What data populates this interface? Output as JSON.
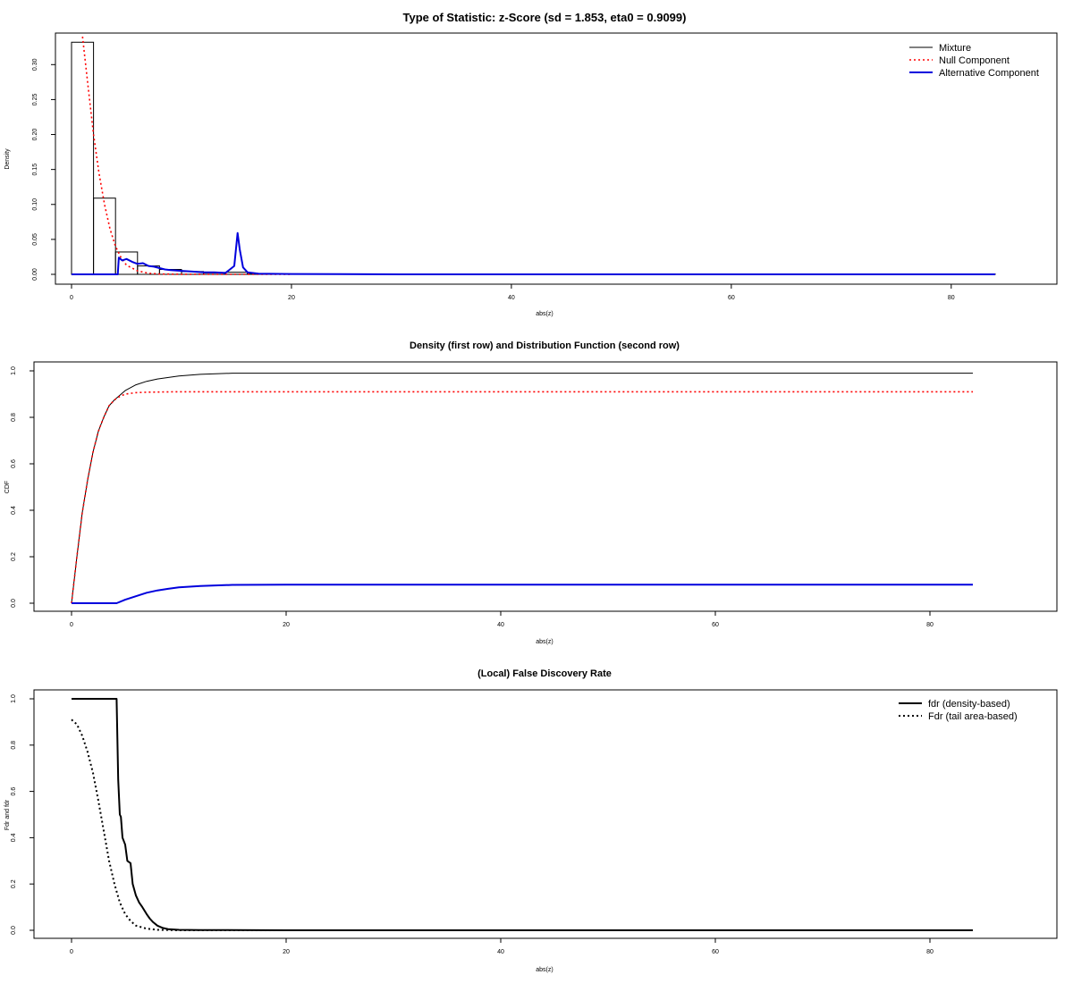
{
  "chart_data": [
    {
      "type": "line",
      "title": "Type of Statistic: z-Score  (sd = 1.853, eta0 = 0.9099)",
      "xlabel": "abs(z)",
      "ylabel": "Density",
      "xlim": [
        0,
        86
      ],
      "ylim": [
        0,
        0.34
      ],
      "xticks": [
        "0",
        "20",
        "40",
        "60",
        "80"
      ],
      "yticks": [
        "0.00",
        "0.05",
        "0.10",
        "0.15",
        "0.20",
        "0.25",
        "0.30"
      ],
      "histogram": {
        "breaks": [
          0,
          2,
          4,
          6,
          8,
          10,
          12,
          14,
          16,
          84
        ],
        "density": [
          0.332,
          0.109,
          0.032,
          0.012,
          0.007,
          0.004,
          0.002,
          0.003,
          0.0005
        ]
      },
      "series": [
        {
          "name": "Mixture",
          "color": "#000000",
          "style": "solid",
          "x": [
            0,
            2,
            4,
            6,
            8,
            10,
            12,
            14,
            16,
            84
          ],
          "y": [
            0,
            0,
            0,
            0,
            0,
            0,
            0,
            0,
            0,
            0
          ]
        },
        {
          "name": "Null Component",
          "color": "#ff0000",
          "style": "dotted",
          "x": [
            1,
            1.5,
            2,
            2.5,
            3,
            3.5,
            4,
            4.5,
            5,
            6,
            7,
            8,
            10,
            12,
            16,
            20
          ],
          "y": [
            0.34,
            0.27,
            0.2,
            0.145,
            0.1,
            0.065,
            0.04,
            0.024,
            0.013,
            0.005,
            0.0015,
            0.0005,
            0.0001,
            0,
            0,
            0
          ]
        },
        {
          "name": "Alternative Component",
          "color": "#0000dd",
          "style": "solid",
          "x": [
            0,
            4.2,
            4.3,
            4.6,
            5,
            5.5,
            6,
            6.5,
            7,
            7.5,
            8,
            8.5,
            9,
            10,
            11,
            12,
            13,
            14,
            14.8,
            15.1,
            15.3,
            15.6,
            16,
            17,
            20,
            30,
            40,
            60,
            84
          ],
          "y": [
            0,
            0,
            0.024,
            0.02,
            0.022,
            0.018,
            0.015,
            0.016,
            0.012,
            0.011,
            0.009,
            0.007,
            0.006,
            0.005,
            0.004,
            0.003,
            0.003,
            0.002,
            0.012,
            0.059,
            0.035,
            0.01,
            0.003,
            0.001,
            0.0005,
            0,
            0,
            0,
            0
          ]
        }
      ],
      "legend": {
        "position": "top-right",
        "entries": [
          "Mixture",
          "Null Component",
          "Alternative Component"
        ]
      }
    },
    {
      "type": "line",
      "title": "Density (first row) and Distribution Function (second row)",
      "xlabel": "abs(z)",
      "ylabel": "CDF",
      "xlim": [
        0,
        86
      ],
      "ylim": [
        0,
        1
      ],
      "xticks": [
        "0",
        "20",
        "40",
        "60",
        "80"
      ],
      "yticks": [
        "0.0",
        "0.2",
        "0.4",
        "0.6",
        "0.8",
        "1.0"
      ],
      "series": [
        {
          "color": "#000000",
          "style": "solid",
          "x": [
            0,
            0.5,
            1,
            1.5,
            2,
            2.5,
            3,
            3.5,
            4,
            5,
            6,
            7,
            8,
            10,
            12,
            15,
            20,
            40,
            84
          ],
          "y": [
            0,
            0.2,
            0.39,
            0.53,
            0.65,
            0.74,
            0.8,
            0.85,
            0.875,
            0.915,
            0.94,
            0.955,
            0.965,
            0.978,
            0.985,
            0.99,
            0.99,
            0.99,
            0.99
          ]
        },
        {
          "color": "#ff0000",
          "style": "dotted",
          "x": [
            0,
            0.5,
            1,
            1.5,
            2,
            2.5,
            3,
            3.5,
            4,
            4.5,
            5,
            6,
            7,
            8,
            10,
            84
          ],
          "y": [
            0,
            0.2,
            0.39,
            0.53,
            0.65,
            0.74,
            0.8,
            0.85,
            0.875,
            0.89,
            0.9,
            0.906,
            0.908,
            0.909,
            0.91,
            0.91
          ]
        },
        {
          "color": "#0000dd",
          "style": "solid",
          "x": [
            0,
            4.2,
            5,
            6,
            7,
            8,
            9,
            10,
            12,
            15,
            20,
            40,
            84
          ],
          "y": [
            0,
            0,
            0.015,
            0.03,
            0.045,
            0.055,
            0.062,
            0.068,
            0.074,
            0.079,
            0.08,
            0.08,
            0.08
          ]
        }
      ]
    },
    {
      "type": "line",
      "title": "(Local) False Discovery Rate",
      "xlabel": "abs(z)",
      "ylabel": "Fdr and fdr",
      "xlim": [
        0,
        86
      ],
      "ylim": [
        0,
        1
      ],
      "xticks": [
        "0",
        "20",
        "40",
        "60",
        "80"
      ],
      "yticks": [
        "0.0",
        "0.2",
        "0.4",
        "0.6",
        "0.8",
        "1.0"
      ],
      "series": [
        {
          "name": "fdr (density-based)",
          "color": "#000000",
          "style": "solid",
          "x": [
            0,
            4.2,
            4.35,
            4.5,
            4.6,
            4.75,
            5,
            5.2,
            5.5,
            5.7,
            6,
            6.3,
            6.6,
            7,
            7.3,
            7.6,
            8,
            8.5,
            9,
            10,
            12,
            20,
            40,
            84
          ],
          "y": [
            1,
            1,
            0.65,
            0.5,
            0.49,
            0.4,
            0.37,
            0.3,
            0.29,
            0.2,
            0.15,
            0.12,
            0.1,
            0.07,
            0.05,
            0.035,
            0.02,
            0.01,
            0.005,
            0.002,
            0.001,
            0,
            0,
            0
          ]
        },
        {
          "name": "Fdr (tail area-based)",
          "color": "#000000",
          "style": "dotted",
          "x": [
            0,
            0.5,
            1,
            1.5,
            2,
            2.5,
            3,
            3.5,
            4,
            4.5,
            5,
            5.5,
            6,
            7,
            8,
            9,
            10,
            12,
            84
          ],
          "y": [
            0.91,
            0.89,
            0.84,
            0.77,
            0.68,
            0.56,
            0.43,
            0.3,
            0.2,
            0.12,
            0.07,
            0.04,
            0.02,
            0.007,
            0.002,
            0.001,
            0,
            0,
            0
          ]
        }
      ],
      "legend": {
        "position": "top-right",
        "entries": [
          "fdr (density-based)",
          "Fdr (tail area-based)"
        ]
      }
    }
  ]
}
